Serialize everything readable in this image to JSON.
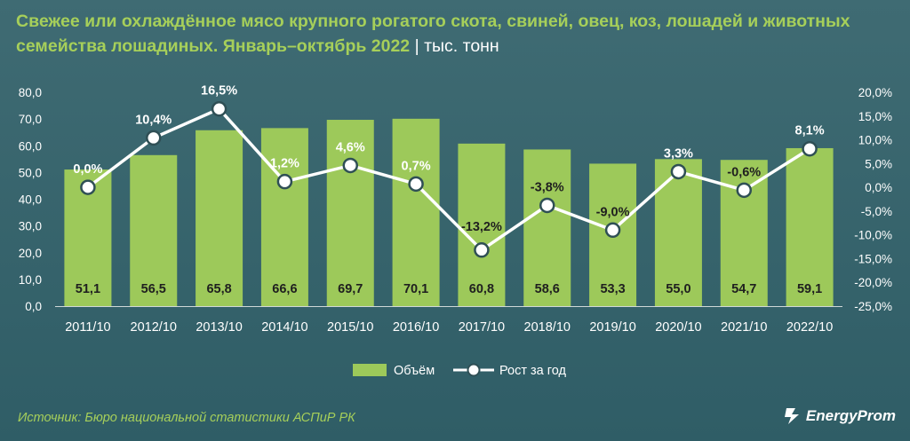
{
  "header": {
    "title": "Свежее или охлаждённое мясо крупного рогатого скота, свиней, овец, коз, лошадей и животных семейства лошадиных. Январь–октябрь 2022",
    "separator": "|",
    "unit": "тыс. тонн"
  },
  "footer": {
    "source": "Источник: Бюро национальной статистики АСПиР РК",
    "brand": "EnergyProm"
  },
  "colors": {
    "bar": "#9dc95a",
    "line": "#ffffff",
    "title": "#a6cf5a",
    "text": "#ffffff"
  },
  "chart_data": {
    "type": "bar",
    "categories": [
      "2011/10",
      "2012/10",
      "2013/10",
      "2014/10",
      "2015/10",
      "2016/10",
      "2017/10",
      "2018/10",
      "2019/10",
      "2020/10",
      "2021/10",
      "2022/10"
    ],
    "series": [
      {
        "name": "Объём",
        "type": "bar",
        "axis": "left",
        "values": [
          51.1,
          56.5,
          65.8,
          66.6,
          69.7,
          70.1,
          60.8,
          58.6,
          53.3,
          55.0,
          54.7,
          59.1
        ],
        "labels": [
          "51,1",
          "56,5",
          "65,8",
          "66,6",
          "69,7",
          "70,1",
          "60,8",
          "58,6",
          "53,3",
          "55,0",
          "54,7",
          "59,1"
        ]
      },
      {
        "name": "Рост за год",
        "type": "line",
        "axis": "right",
        "values": [
          0.0,
          10.4,
          16.5,
          1.2,
          4.6,
          0.7,
          -13.2,
          -3.8,
          -9.0,
          3.3,
          -0.6,
          8.1
        ],
        "labels": [
          "0,0%",
          "10,4%",
          "16,5%",
          "1,2%",
          "4,6%",
          "0,7%",
          "-13,2%",
          "-3,8%",
          "-9,0%",
          "3,3%",
          "-0,6%",
          "8,1%"
        ]
      }
    ],
    "y_left": {
      "ylim": [
        0,
        80
      ],
      "ticks": [
        "0,0",
        "10,0",
        "20,0",
        "30,0",
        "40,0",
        "50,0",
        "60,0",
        "70,0",
        "80,0"
      ]
    },
    "y_right": {
      "ylim": [
        -25,
        20
      ],
      "ticks": [
        "-25,0%",
        "-20,0%",
        "-15,0%",
        "-10,0%",
        "-5,0%",
        "0,0%",
        "5,0%",
        "10,0%",
        "15,0%",
        "20,0%"
      ]
    },
    "grid": false,
    "legend": "bottom-center"
  }
}
